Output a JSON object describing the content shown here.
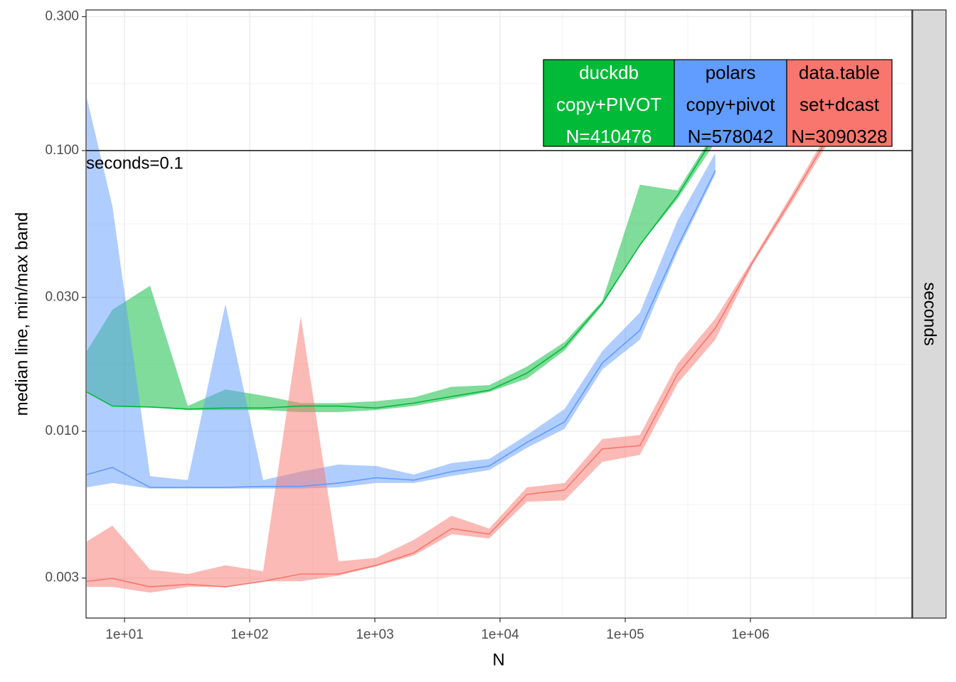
{
  "chart_data": {
    "type": "line-band",
    "xlabel": "N",
    "ylabel": "median line, min/max band",
    "strip": "seconds",
    "log_x": true,
    "log_y": true,
    "grid": true,
    "xlim": [
      4.93,
      19500000
    ],
    "ylim": [
      0.00216,
      0.317
    ],
    "xticks": [
      {
        "value": 10,
        "label": "1e+01"
      },
      {
        "value": 100,
        "label": "1e+02"
      },
      {
        "value": 1000,
        "label": "1e+03"
      },
      {
        "value": 10000,
        "label": "1e+04"
      },
      {
        "value": 100000,
        "label": "1e+05"
      },
      {
        "value": 1000000,
        "label": "1e+06"
      }
    ],
    "yticks": [
      {
        "value": 0.003,
        "label": "0.003"
      },
      {
        "value": 0.01,
        "label": "0.010"
      },
      {
        "value": 0.03,
        "label": "0.030"
      },
      {
        "value": 0.1,
        "label": "0.100"
      },
      {
        "value": 0.3,
        "label": "0.300"
      }
    ],
    "x_minor_grid": [
      31.6,
      316,
      3160,
      31600,
      316000,
      3160000,
      10000000
    ],
    "y_minor_grid": [
      0.00548,
      0.0173,
      0.0548,
      0.173
    ],
    "hline": {
      "value": 0.1,
      "label": "seconds=0.1"
    },
    "series": [
      {
        "name": "duckdb",
        "method": "copy+PIVOT",
        "n_label": "N=410476",
        "color": "#00BA38",
        "text_color": "#ffffff",
        "x": [
          5,
          8,
          16,
          32,
          64,
          128,
          256,
          512,
          1024,
          2048,
          4096,
          8192,
          16384,
          32768,
          65536,
          131072,
          262144,
          524288
        ],
        "median": [
          0.0138,
          0.0123,
          0.0122,
          0.012,
          0.0121,
          0.0121,
          0.0123,
          0.0123,
          0.0121,
          0.0126,
          0.0133,
          0.014,
          0.0161,
          0.02,
          0.0286,
          0.0461,
          0.0693,
          0.114
        ],
        "max": [
          0.0193,
          0.0271,
          0.033,
          0.0123,
          0.0141,
          0.0134,
          0.0126,
          0.0126,
          0.0128,
          0.0132,
          0.0144,
          0.0146,
          0.017,
          0.0208,
          0.0291,
          0.0756,
          0.0721,
          0.118
        ],
        "min": [
          0.0138,
          0.0123,
          0.0122,
          0.0119,
          0.0119,
          0.0119,
          0.0117,
          0.0117,
          0.0119,
          0.0123,
          0.013,
          0.0138,
          0.0154,
          0.0194,
          0.0281,
          0.0461,
          0.0673,
          0.107
        ]
      },
      {
        "name": "polars",
        "method": "copy+pivot",
        "n_label": "N=578042",
        "color": "#619CFF",
        "text_color": "#000000",
        "x": [
          5,
          8,
          16,
          32,
          64,
          128,
          256,
          512,
          1024,
          2048,
          4096,
          8192,
          16384,
          32768,
          65536,
          131072,
          262144,
          524288
        ],
        "median": [
          0.00701,
          0.00743,
          0.00631,
          0.00631,
          0.00631,
          0.00636,
          0.00636,
          0.00654,
          0.00683,
          0.0067,
          0.00718,
          0.00752,
          0.00912,
          0.0108,
          0.0175,
          0.0229,
          0.0455,
          0.0849
        ],
        "max": [
          0.154,
          0.0635,
          0.00692,
          0.0067,
          0.0284,
          0.0067,
          0.00718,
          0.00761,
          0.00752,
          0.00701,
          0.0077,
          0.00797,
          0.0097,
          0.012,
          0.0193,
          0.0265,
          0.0565,
          0.098
        ],
        "min": [
          0.00631,
          0.00654,
          0.00625,
          0.00625,
          0.00625,
          0.00625,
          0.00625,
          0.00631,
          0.00654,
          0.00654,
          0.00693,
          0.00727,
          0.00873,
          0.0102,
          0.0166,
          0.0212,
          0.0437,
          0.0825
        ]
      },
      {
        "name": "data.table",
        "method": "set+dcast",
        "n_label": "N=3090328",
        "color": "#F8766D",
        "text_color": "#000000",
        "x": [
          5,
          8,
          16,
          32,
          64,
          128,
          256,
          512,
          1024,
          2048,
          4096,
          8192,
          16384,
          32768,
          65536,
          131072,
          262144,
          524288,
          1048576,
          2097152,
          4194304
        ],
        "median": [
          0.00292,
          0.00299,
          0.00279,
          0.00285,
          0.00279,
          0.00292,
          0.0031,
          0.0031,
          0.00333,
          0.00369,
          0.0045,
          0.0043,
          0.00596,
          0.00617,
          0.00865,
          0.00889,
          0.016,
          0.0233,
          0.0403,
          0.0665,
          0.112
        ],
        "max": [
          0.00405,
          0.00461,
          0.00321,
          0.0031,
          0.00333,
          0.00317,
          0.0256,
          0.00344,
          0.00354,
          0.0041,
          0.005,
          0.0045,
          0.00631,
          0.00654,
          0.00938,
          0.0097,
          0.0174,
          0.0252,
          0.0412,
          0.0689,
          0.117
        ],
        "min": [
          0.00279,
          0.00279,
          0.00266,
          0.00279,
          0.00279,
          0.00292,
          0.00292,
          0.00306,
          0.0033,
          0.00361,
          0.0043,
          0.00415,
          0.00561,
          0.00567,
          0.00778,
          0.00824,
          0.0148,
          0.0212,
          0.0394,
          0.0642,
          0.107
        ]
      }
    ]
  }
}
